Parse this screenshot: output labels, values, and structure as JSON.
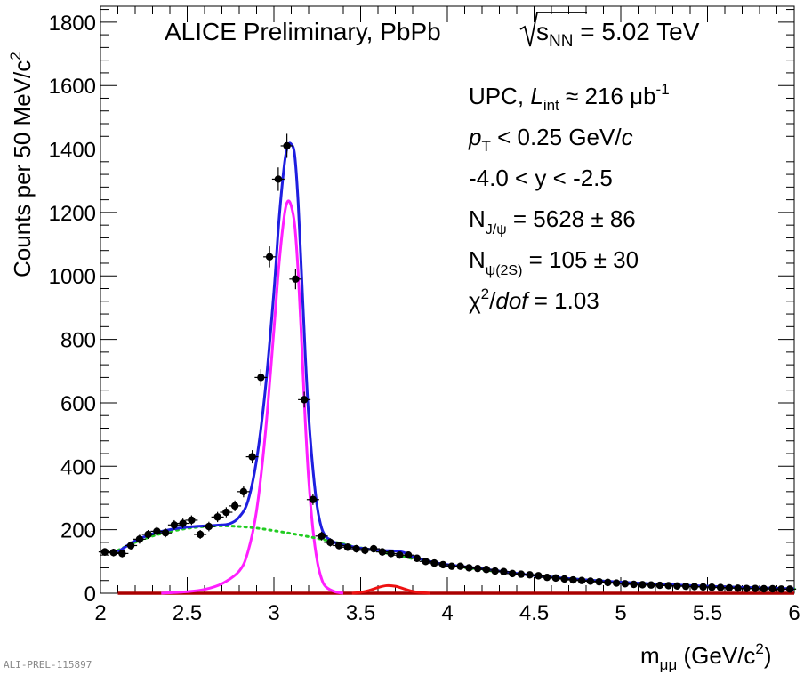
{
  "chart_data": {
    "type": "line",
    "title_prefix": "ALICE Preliminary, PbPb ",
    "title_sqrt_var": "s",
    "title_sqrt_sub": "NN",
    "title_suffix": " = 5.02 TeV",
    "xlabel_main": "m",
    "xlabel_sub": "μμ",
    "xlabel_unit": " (GeV/c",
    "xlabel_unit_sup": "2",
    "xlabel_close": ")",
    "ylabel_main": "Counts per 50 MeV/c",
    "ylabel_sup": "2",
    "xlim": [
      2,
      6
    ],
    "ylim": [
      0,
      1850
    ],
    "x_ticks": [
      2,
      2.5,
      3,
      3.5,
      4,
      4.5,
      5,
      5.5,
      6
    ],
    "x_tick_labels": [
      "2",
      "2.5",
      "3",
      "3.5",
      "4",
      "4.5",
      "5",
      "5.5",
      "6"
    ],
    "y_ticks": [
      0,
      200,
      400,
      600,
      800,
      1000,
      1200,
      1400,
      1600,
      1800
    ],
    "y_tick_labels": [
      "0",
      "200",
      "400",
      "600",
      "800",
      "1000",
      "1200",
      "1400",
      "1600",
      "1800"
    ],
    "annotations": {
      "line1_a": "UPC, ",
      "line1_L": "L",
      "line1_Lsub": "int",
      "line1_b": " ≈ 216 μb",
      "line1_sup": "-1",
      "line2_p": "p",
      "line2_psub": "T",
      "line2_b": " < 0.25 GeV/",
      "line2_c": "c",
      "line3": "-4.0 < y < -2.5",
      "line4_N": "N",
      "line4_sub": "J/ψ",
      "line4_b": " = 5628 ± 86",
      "line5_N": "N",
      "line5_sub": "ψ(2S)",
      "line5_b": " = 105 ± 30",
      "line6_chi": "χ",
      "line6_sup": "2",
      "line6_slash": "/",
      "line6_dof": "dof",
      "line6_b": " = 1.03"
    },
    "data_points": {
      "name": "Data",
      "x": [
        2.025,
        2.075,
        2.125,
        2.175,
        2.225,
        2.275,
        2.325,
        2.375,
        2.425,
        2.475,
        2.525,
        2.575,
        2.625,
        2.675,
        2.725,
        2.775,
        2.825,
        2.875,
        2.925,
        2.975,
        3.025,
        3.075,
        3.125,
        3.175,
        3.225,
        3.275,
        3.325,
        3.375,
        3.425,
        3.475,
        3.525,
        3.575,
        3.625,
        3.675,
        3.725,
        3.775,
        3.825,
        3.875,
        3.925,
        3.975,
        4.025,
        4.075,
        4.125,
        4.175,
        4.225,
        4.275,
        4.325,
        4.375,
        4.425,
        4.475,
        4.525,
        4.575,
        4.625,
        4.675,
        4.725,
        4.775,
        4.825,
        4.875,
        4.925,
        4.975,
        5.025,
        5.075,
        5.125,
        5.175,
        5.225,
        5.275,
        5.325,
        5.375,
        5.425,
        5.475,
        5.525,
        5.575,
        5.625,
        5.675,
        5.725,
        5.775,
        5.825,
        5.875,
        5.925,
        5.975
      ],
      "y": [
        130,
        128,
        125,
        150,
        170,
        185,
        195,
        190,
        215,
        220,
        230,
        185,
        210,
        240,
        255,
        275,
        320,
        430,
        680,
        1060,
        1305,
        1410,
        990,
        610,
        295,
        180,
        160,
        150,
        145,
        140,
        135,
        140,
        130,
        125,
        120,
        120,
        110,
        100,
        95,
        90,
        85,
        85,
        80,
        78,
        75,
        70,
        68,
        62,
        60,
        58,
        55,
        50,
        48,
        45,
        42,
        40,
        38,
        36,
        34,
        32,
        30,
        28,
        27,
        26,
        25,
        24,
        23,
        22,
        21,
        20,
        19,
        18,
        17,
        16,
        15,
        15,
        14,
        14,
        13,
        13
      ],
      "errors": [
        12,
        12,
        12,
        13,
        14,
        14,
        14,
        14,
        15,
        15,
        15,
        14,
        15,
        16,
        16,
        17,
        18,
        21,
        26,
        33,
        37,
        38,
        32,
        25,
        17,
        14,
        13,
        12,
        12,
        12,
        12,
        12,
        12,
        11,
        11,
        11,
        11,
        10,
        10,
        10,
        9,
        9,
        9,
        9,
        9,
        8,
        8,
        8,
        8,
        8,
        7,
        7,
        7,
        7,
        7,
        6,
        6,
        6,
        6,
        6,
        6,
        5,
        5,
        5,
        5,
        5,
        5,
        5,
        5,
        5,
        4,
        4,
        4,
        4,
        4,
        4,
        4,
        4,
        4,
        4
      ],
      "color": "#000000"
    },
    "series": [
      {
        "name": "Total fit",
        "color": "#1f1fe0",
        "style": "solid",
        "x": [
          2.1,
          2.2,
          2.3,
          2.4,
          2.5,
          2.6,
          2.7,
          2.75,
          2.8,
          2.85,
          2.9,
          2.95,
          3.0,
          3.03,
          3.06,
          3.08,
          3.1,
          3.12,
          3.14,
          3.16,
          3.18,
          3.2,
          3.225,
          3.25,
          3.275,
          3.3,
          3.325,
          3.35,
          3.4,
          3.5,
          3.6,
          3.65,
          3.7,
          3.75,
          3.8,
          3.9,
          4.0,
          4.2,
          4.5,
          4.8,
          5.0,
          5.2,
          5.5,
          5.8,
          6.0
        ],
        "y": [
          130,
          165,
          187,
          200,
          208,
          212,
          215,
          220,
          240,
          290,
          420,
          640,
          950,
          1180,
          1350,
          1410,
          1415,
          1380,
          1230,
          1000,
          760,
          560,
          390,
          270,
          205,
          178,
          168,
          160,
          152,
          142,
          135,
          134,
          133,
          128,
          115,
          100,
          90,
          77,
          56,
          42,
          35,
          29,
          22,
          17,
          14
        ]
      },
      {
        "name": "J/psi signal",
        "color": "#ff1fff",
        "style": "solid",
        "x": [
          2.35,
          2.5,
          2.6,
          2.7,
          2.8,
          2.85,
          2.9,
          2.95,
          3.0,
          3.03,
          3.06,
          3.08,
          3.1,
          3.12,
          3.14,
          3.16,
          3.18,
          3.2,
          3.225,
          3.25,
          3.275,
          3.3,
          3.35,
          3.4
        ],
        "y": [
          0,
          5,
          12,
          30,
          70,
          130,
          260,
          500,
          830,
          1040,
          1190,
          1235,
          1220,
          1160,
          1010,
          790,
          550,
          360,
          200,
          100,
          45,
          20,
          5,
          0
        ]
      },
      {
        "name": "psi(2S) signal",
        "color": "#ee1111",
        "style": "solid",
        "x": [
          3.45,
          3.5,
          3.55,
          3.6,
          3.65,
          3.7,
          3.75,
          3.8,
          3.85,
          3.9
        ],
        "y": [
          0,
          3,
          9,
          18,
          24,
          22,
          14,
          6,
          2,
          0
        ]
      },
      {
        "name": "Background",
        "color": "#22cc22",
        "style": "dotted",
        "x": [
          2.1,
          2.2,
          2.3,
          2.4,
          2.5,
          2.6,
          2.7,
          2.8,
          2.9,
          3.0,
          3.1,
          3.2,
          3.3,
          3.4,
          3.5,
          3.6,
          3.7,
          3.8,
          3.9,
          4.0,
          4.2,
          4.5,
          4.8,
          5.0,
          5.2,
          5.5,
          5.8,
          6.0
        ],
        "y": [
          135,
          160,
          180,
          194,
          204,
          210,
          212,
          210,
          205,
          197,
          188,
          178,
          167,
          155,
          143,
          132,
          120,
          109,
          99,
          89,
          74,
          56,
          42,
          35,
          29,
          22,
          17,
          14
        ]
      },
      {
        "name": "Baseline",
        "color": "#aa0000",
        "style": "solid",
        "x": [
          2.1,
          6.0
        ],
        "y": [
          0,
          0
        ]
      }
    ]
  },
  "watermark": "ALI-PREL-115897"
}
